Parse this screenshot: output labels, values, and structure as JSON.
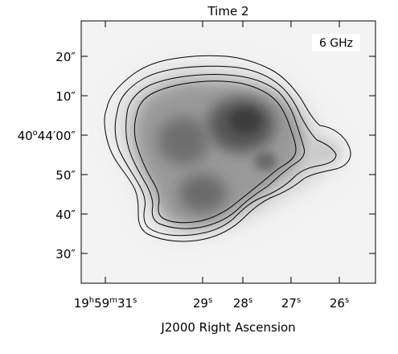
{
  "title": "Time 2",
  "freq_label": "6 GHz",
  "x_axis": {
    "label": "J2000 Right Ascension",
    "ticks": [
      {
        "prefix": "19",
        "sup1": "h",
        "mid1": "59",
        "sup2": "m",
        "mid2": "31",
        "sup3": "s"
      },
      {
        "main": "29",
        "sup": "s"
      },
      {
        "main": "28",
        "sup": "s"
      },
      {
        "main": "27",
        "sup": "s"
      },
      {
        "main": "26",
        "sup": "s"
      }
    ]
  },
  "y_axis": {
    "ticks": [
      {
        "main": "20″"
      },
      {
        "main": "10″"
      },
      {
        "main": "40°44′00″",
        "deg": "40",
        "degsym": "o",
        "arcmin": "44′",
        "arcsec": "00″"
      },
      {
        "main": "50″"
      },
      {
        "main": "40″"
      },
      {
        "main": "30″"
      }
    ]
  },
  "colors": {
    "frame": "#000000",
    "background": "#f3f3f3",
    "emission_peak": "#333333",
    "contour": "#000000"
  }
}
